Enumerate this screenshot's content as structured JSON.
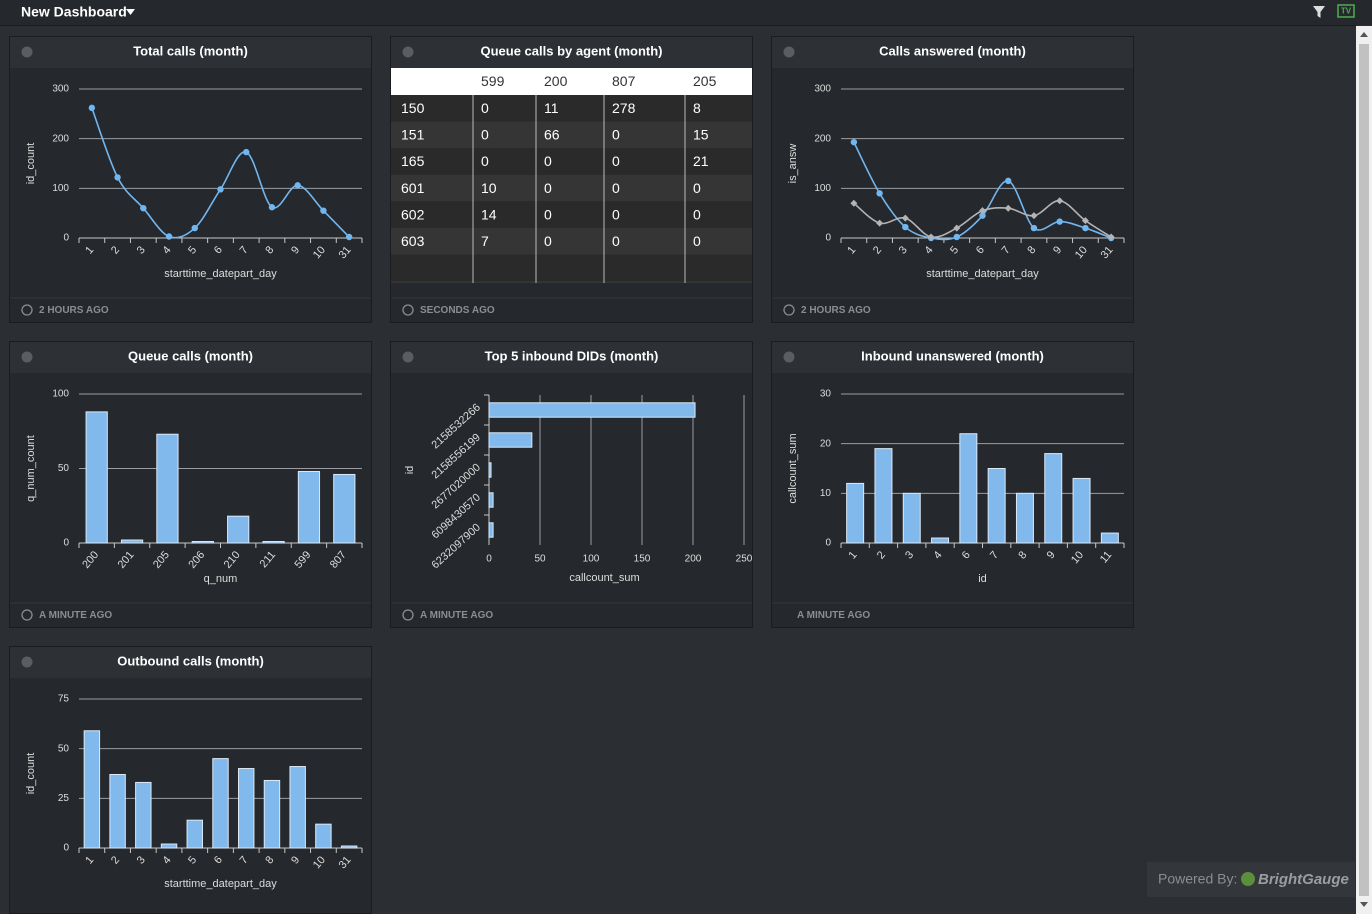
{
  "header": {
    "title": "New Dashboard"
  },
  "chart_data": [
    {
      "type": "line",
      "title": "Total calls (month)",
      "ylabel": "id_count",
      "xlabel": "starttime_datepart_day",
      "categories": [
        "1",
        "2",
        "3",
        "4",
        "5",
        "6",
        "7",
        "8",
        "9",
        "10",
        "31"
      ],
      "series": [
        {
          "color": "#72b6f0",
          "values": [
            262,
            122,
            60,
            3,
            20,
            98,
            173,
            62,
            106,
            55,
            2
          ]
        }
      ],
      "ylim": [
        0,
        300
      ],
      "yticks": [
        0,
        100,
        200,
        300
      ],
      "grid": true,
      "updated": "2 HOURS AGO"
    },
    {
      "type": "table",
      "title": "Queue calls by agent (month)",
      "columns": [
        "599",
        "200",
        "807",
        "205"
      ],
      "rows": [
        {
          "label": "150",
          "values": [
            0,
            11,
            278,
            8
          ]
        },
        {
          "label": "151",
          "values": [
            0,
            66,
            0,
            15
          ]
        },
        {
          "label": "165",
          "values": [
            0,
            0,
            0,
            21
          ]
        },
        {
          "label": "601",
          "values": [
            10,
            0,
            0,
            0
          ]
        },
        {
          "label": "602",
          "values": [
            14,
            0,
            0,
            0
          ]
        },
        {
          "label": "603",
          "values": [
            7,
            0,
            0,
            0
          ]
        }
      ],
      "updated": "SECONDS AGO"
    },
    {
      "type": "line",
      "title": "Calls answered (month)",
      "ylabel": "is_answ",
      "xlabel": "starttime_datepart_day",
      "categories": [
        "1",
        "2",
        "3",
        "4",
        "5",
        "6",
        "7",
        "8",
        "9",
        "10",
        "31"
      ],
      "series": [
        {
          "color": "#72b6f0",
          "values": [
            193,
            90,
            22,
            0,
            2,
            45,
            115,
            20,
            33,
            20,
            0
          ]
        },
        {
          "color": "#b4b4b4",
          "values": [
            70,
            30,
            40,
            2,
            20,
            55,
            60,
            45,
            75,
            35,
            2
          ]
        }
      ],
      "ylim": [
        0,
        300
      ],
      "yticks": [
        0,
        100,
        200,
        300
      ],
      "grid": true,
      "updated": "2 HOURS AGO"
    },
    {
      "type": "bar",
      "title": "Queue calls (month)",
      "ylabel": "q_num_count",
      "xlabel": "q_num",
      "categories": [
        "200",
        "201",
        "205",
        "206",
        "210",
        "211",
        "599",
        "807"
      ],
      "values": [
        88,
        2,
        73,
        1,
        18,
        1,
        48,
        46
      ],
      "color": "#82b9ec",
      "ylim": [
        0,
        100
      ],
      "yticks": [
        0,
        50,
        100
      ],
      "grid": true,
      "updated": "A MINUTE AGO"
    },
    {
      "type": "hbar",
      "title": "Top 5 inbound DIDs (month)",
      "ylabel": "id",
      "xlabel": "callcount_sum",
      "categories": [
        "2158532266",
        "2158556199",
        "2677020000",
        "6098430570",
        "6232097900"
      ],
      "values": [
        202,
        42,
        2,
        4,
        4
      ],
      "color": "#82b9ec",
      "xlim": [
        0,
        250
      ],
      "xticks": [
        0,
        50,
        100,
        150,
        200,
        250
      ],
      "grid": true,
      "updated": "A MINUTE AGO"
    },
    {
      "type": "bar",
      "title": "Inbound unanswered (month)",
      "ylabel": "callcount_sum",
      "xlabel": "id",
      "categories": [
        "1",
        "2",
        "3",
        "4",
        "6",
        "7",
        "8",
        "9",
        "10",
        "11"
      ],
      "values": [
        12,
        19,
        10,
        1,
        22,
        15,
        10,
        18,
        13,
        2
      ],
      "color": "#82b9ec",
      "ylim": [
        0,
        30
      ],
      "yticks": [
        0,
        10,
        20,
        30
      ],
      "grid": true,
      "updated": "A MINUTE AGO"
    },
    {
      "type": "bar",
      "title": "Outbound calls (month)",
      "ylabel": "id_count",
      "xlabel": "starttime_datepart_day",
      "categories": [
        "1",
        "2",
        "3",
        "4",
        "5",
        "6",
        "7",
        "8",
        "9",
        "10",
        "31"
      ],
      "values": [
        59,
        37,
        33,
        2,
        14,
        45,
        40,
        34,
        41,
        12,
        1
      ],
      "color": "#82b9ec",
      "ylim": [
        0,
        75
      ],
      "yticks": [
        0,
        25,
        50,
        75
      ],
      "grid": true
    }
  ],
  "footer": {
    "label": "Powered By:",
    "brand": "BrightGauge"
  }
}
